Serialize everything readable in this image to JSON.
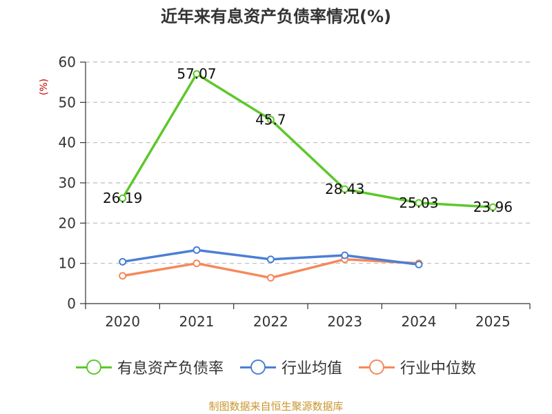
{
  "chart_data": {
    "type": "line",
    "title": "近年来有息资产负债率情况(%)",
    "ylabel": "(%)",
    "xlabel": "",
    "categories": [
      "2020",
      "2021",
      "2022",
      "2023",
      "2024",
      "2025"
    ],
    "ylim": [
      0,
      60
    ],
    "yticks": [
      0,
      10,
      20,
      30,
      40,
      50,
      60
    ],
    "grid": true,
    "legend_position": "bottom",
    "series": [
      {
        "name": "有息资产负债率",
        "color": "#5cc82a",
        "values": [
          26.19,
          57.07,
          45.7,
          28.43,
          25.03,
          23.96
        ],
        "data_labels": [
          "26.19",
          "57.07",
          "45.7",
          "28.43",
          "25.03",
          "23.96"
        ]
      },
      {
        "name": "行业均值",
        "color": "#4a7fd6",
        "values": [
          10.4,
          13.3,
          11.0,
          12.0,
          9.7,
          null
        ]
      },
      {
        "name": "行业中位数",
        "color": "#f5895a",
        "values": [
          6.9,
          10.0,
          6.4,
          11.0,
          10.0,
          null
        ]
      }
    ],
    "source": "制图数据来自恒生聚源数据库"
  }
}
